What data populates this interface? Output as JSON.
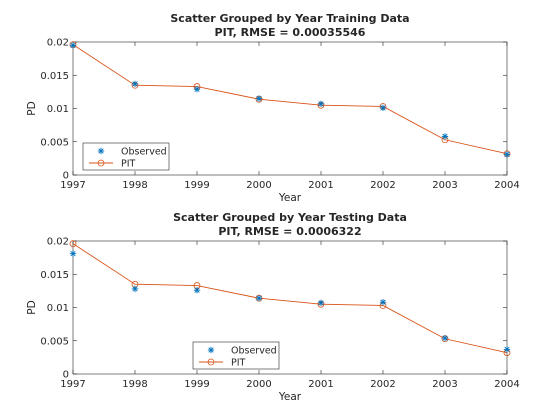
{
  "chart_data": [
    {
      "type": "scatter",
      "title": "Scatter Grouped by Year Training Data",
      "subtitle": "PIT, RMSE = 0.00035546",
      "xlabel": "Year",
      "ylabel": "PD",
      "xlim": [
        1997,
        2004
      ],
      "ylim": [
        0,
        0.02
      ],
      "xticks": [
        "1997",
        "1998",
        "1999",
        "2000",
        "2001",
        "2002",
        "2003",
        "2004"
      ],
      "yticks": [
        "0",
        "0.005",
        "0.01",
        "0.015",
        "0.02"
      ],
      "x": [
        1997,
        1998,
        1999,
        2000,
        2001,
        2002,
        2003,
        2004
      ],
      "series": [
        {
          "name": "Observed",
          "kind": "markers",
          "marker": "asterisk",
          "color": "#0072bd",
          "values": [
            0.0195,
            0.0137,
            0.0129,
            0.0115,
            0.0107,
            0.0101,
            0.0058,
            0.0031
          ]
        },
        {
          "name": "PIT",
          "kind": "line",
          "marker": "circle",
          "color": "#d95319",
          "values": [
            0.0196,
            0.0135,
            0.0133,
            0.0114,
            0.0105,
            0.0103,
            0.0053,
            0.0032
          ]
        }
      ],
      "grid": false,
      "legend": "bottom-left"
    },
    {
      "type": "scatter",
      "title": "Scatter Grouped by Year Testing Data",
      "subtitle": "PIT, RMSE = 0.0006322",
      "xlabel": "Year",
      "ylabel": "PD",
      "xlim": [
        1997,
        2004
      ],
      "ylim": [
        0,
        0.02
      ],
      "xticks": [
        "1997",
        "1998",
        "1999",
        "2000",
        "2001",
        "2002",
        "2003",
        "2004"
      ],
      "yticks": [
        "0",
        "0.005",
        "0.01",
        "0.015",
        "0.02"
      ],
      "x": [
        1997,
        1998,
        1999,
        2000,
        2001,
        2002,
        2003,
        2004
      ],
      "series": [
        {
          "name": "Observed",
          "kind": "markers",
          "marker": "asterisk",
          "color": "#0072bd",
          "values": [
            0.0181,
            0.0128,
            0.0126,
            0.0114,
            0.0107,
            0.0108,
            0.0054,
            0.0037
          ]
        },
        {
          "name": "PIT",
          "kind": "line",
          "marker": "circle",
          "color": "#d95319",
          "values": [
            0.0196,
            0.0135,
            0.0133,
            0.0114,
            0.0105,
            0.0103,
            0.0053,
            0.0032
          ]
        }
      ],
      "grid": false,
      "legend": "bottom-center"
    }
  ]
}
